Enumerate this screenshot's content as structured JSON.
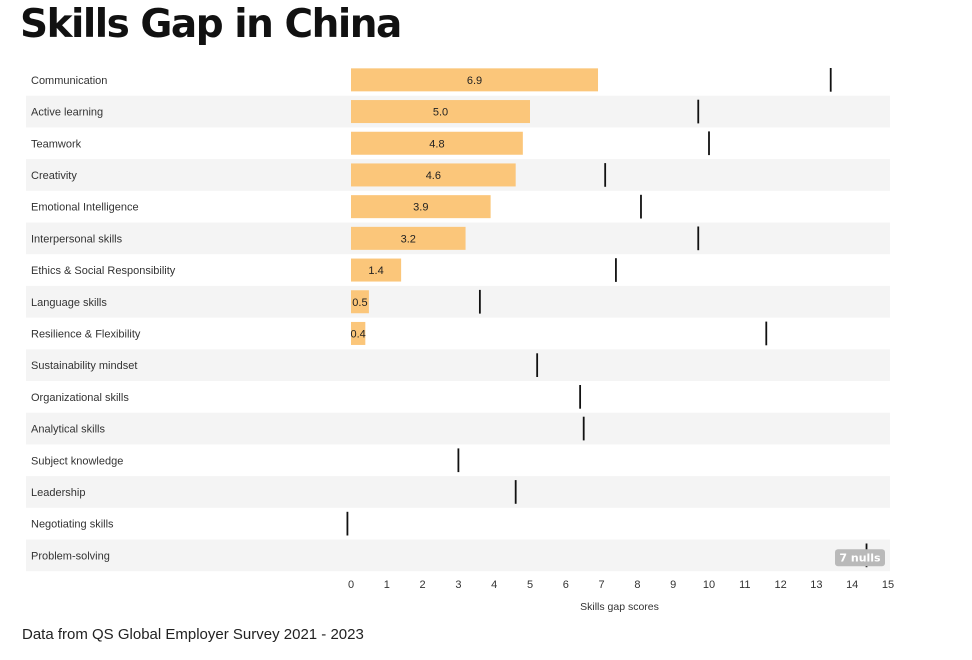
{
  "title": "Skills Gap in China",
  "source": "Data from QS Global Employer Survey 2021 - 2023",
  "colors": {
    "bar": "#fbc67a",
    "band": "#f4f4f4",
    "marker": "#111111",
    "nulls_badge": "#b9b9b9"
  },
  "chart_data": {
    "type": "bar",
    "orientation": "horizontal",
    "xlabel": "Skills gap scores",
    "xlim": [
      0,
      15
    ],
    "xticks": [
      0,
      1,
      2,
      3,
      4,
      5,
      6,
      7,
      8,
      9,
      10,
      11,
      12,
      13,
      14,
      15
    ],
    "categories": [
      "Communication",
      "Active learning",
      "Teamwork",
      "Creativity",
      "Emotional Intelligence",
      "Interpersonal skills",
      "Ethics & Social Responsibility",
      "Language skills",
      "Resilience & Flexibility",
      "Sustainability mindset",
      "Organizational skills",
      "Analytical skills",
      "Subject knowledge",
      "Leadership",
      "Negotiating skills",
      "Problem-solving"
    ],
    "series": [
      {
        "values": [
          6.9,
          5.0,
          4.8,
          4.6,
          3.9,
          3.2,
          1.4,
          0.5,
          0.4,
          null,
          null,
          null,
          null,
          null,
          null,
          null
        ],
        "value_labels": [
          "6.9",
          "5.0",
          "4.8",
          "4.6",
          "3.9",
          "3.2",
          "1.4",
          "0.5",
          "0.4",
          "",
          "",
          "",
          "",
          "",
          "",
          ""
        ]
      },
      {
        "markers": [
          13.4,
          9.7,
          10.0,
          7.1,
          8.1,
          9.7,
          7.4,
          3.6,
          11.6,
          5.2,
          6.4,
          6.5,
          3.0,
          4.6,
          -0.1,
          14.4
        ]
      }
    ],
    "nulls_label": "7 nulls"
  }
}
